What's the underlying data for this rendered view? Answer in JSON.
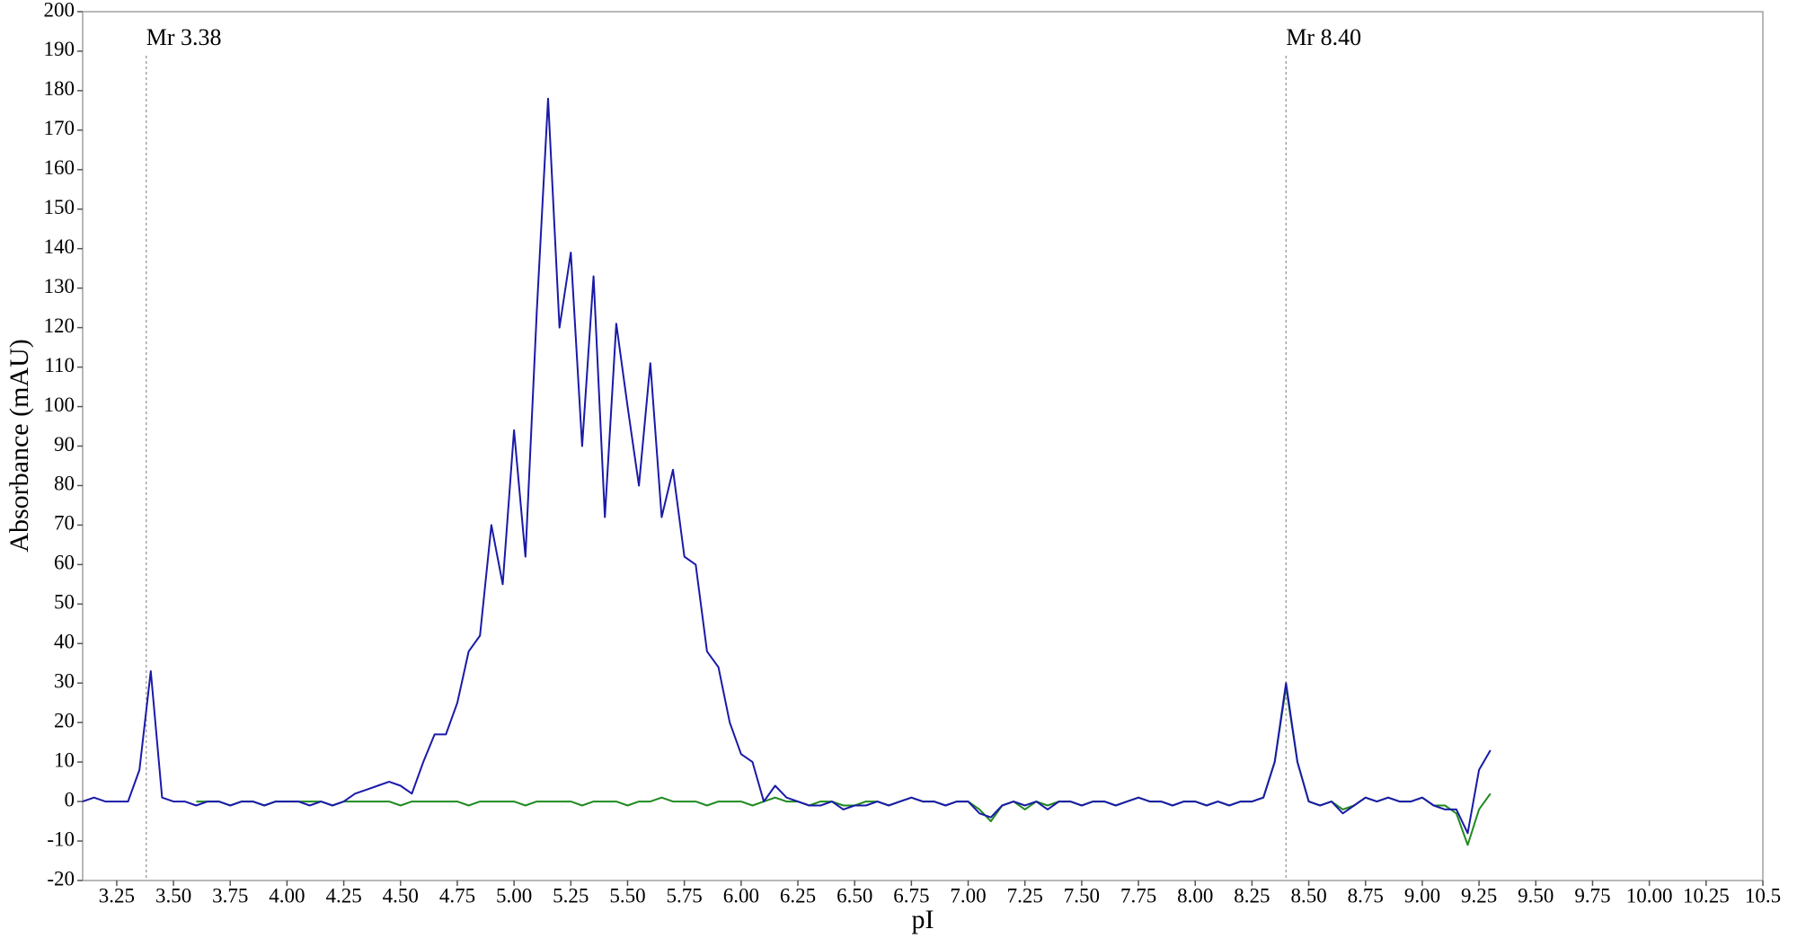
{
  "chart_data": {
    "type": "line",
    "x_label": "pI",
    "y_label": "Absorbance (mAU)",
    "x": [
      3.1,
      3.15,
      3.2,
      3.25,
      3.3,
      3.35,
      3.4,
      3.45,
      3.5,
      3.55,
      3.6,
      3.65,
      3.7,
      3.75,
      3.8,
      3.85,
      3.9,
      3.95,
      4.0,
      4.05,
      4.1,
      4.15,
      4.2,
      4.25,
      4.3,
      4.35,
      4.4,
      4.45,
      4.5,
      4.55,
      4.6,
      4.65,
      4.7,
      4.75,
      4.8,
      4.85,
      4.9,
      4.95,
      5.0,
      5.05,
      5.1,
      5.15,
      5.2,
      5.25,
      5.3,
      5.35,
      5.4,
      5.45,
      5.5,
      5.55,
      5.6,
      5.65,
      5.7,
      5.75,
      5.8,
      5.85,
      5.9,
      5.95,
      6.0,
      6.05,
      6.1,
      6.15,
      6.2,
      6.25,
      6.3,
      6.35,
      6.4,
      6.45,
      6.5,
      6.55,
      6.6,
      6.65,
      6.7,
      6.75,
      6.8,
      6.85,
      6.9,
      6.95,
      7.0,
      7.05,
      7.1,
      7.15,
      7.2,
      7.25,
      7.3,
      7.35,
      7.4,
      7.45,
      7.5,
      7.55,
      7.6,
      7.65,
      7.7,
      7.75,
      7.8,
      7.85,
      7.9,
      7.95,
      8.0,
      8.05,
      8.1,
      8.15,
      8.2,
      8.25,
      8.3,
      8.35,
      8.4,
      8.45,
      8.5,
      8.55,
      8.6,
      8.65,
      8.7,
      8.75,
      8.8,
      8.85,
      8.9,
      8.95,
      9.0,
      9.05,
      9.1,
      9.15,
      9.2,
      9.25,
      9.3
    ],
    "series": [
      {
        "color": "#1f8a1f",
        "values": [
          null,
          null,
          null,
          null,
          null,
          null,
          null,
          null,
          null,
          null,
          0,
          0,
          0,
          -1,
          0,
          0,
          -1,
          0,
          0,
          0,
          0,
          0,
          -1,
          0,
          0,
          0,
          0,
          0,
          -1,
          0,
          0,
          0,
          0,
          0,
          -1,
          0,
          0,
          0,
          0,
          -1,
          0,
          0,
          0,
          0,
          -1,
          0,
          0,
          0,
          -1,
          0,
          0,
          1,
          0,
          0,
          0,
          -1,
          0,
          0,
          0,
          -1,
          0,
          1,
          0,
          0,
          -1,
          0,
          0,
          -1,
          -1,
          0,
          0,
          -1,
          0,
          1,
          0,
          0,
          -1,
          0,
          0,
          -2,
          -5,
          -1,
          0,
          -2,
          0,
          -1,
          0,
          0,
          -1,
          0,
          0,
          -1,
          0,
          1,
          0,
          0,
          -1,
          0,
          0,
          -1,
          0,
          -1,
          0,
          0,
          1,
          10,
          29,
          10,
          0,
          -1,
          0,
          -2,
          -1,
          1,
          0,
          1,
          0,
          0,
          1,
          -1,
          -1,
          -3,
          -11,
          -2,
          2
        ]
      },
      {
        "color": "#1a1aa8",
        "values": [
          0,
          1,
          0,
          0,
          0,
          8,
          33,
          1,
          0,
          0,
          -1,
          0,
          0,
          -1,
          0,
          0,
          -1,
          0,
          0,
          0,
          -1,
          0,
          -1,
          0,
          2,
          3,
          4,
          5,
          4,
          2,
          10,
          17,
          17,
          25,
          38,
          42,
          70,
          55,
          94,
          62,
          124,
          178,
          120,
          139,
          90,
          133,
          72,
          121,
          100,
          80,
          111,
          72,
          84,
          62,
          60,
          38,
          34,
          20,
          12,
          10,
          0,
          4,
          1,
          0,
          -1,
          -1,
          0,
          -2,
          -1,
          -1,
          0,
          -1,
          0,
          1,
          0,
          0,
          -1,
          0,
          0,
          -3,
          -4,
          -1,
          0,
          -1,
          0,
          -2,
          0,
          0,
          -1,
          0,
          0,
          -1,
          0,
          1,
          0,
          0,
          -1,
          0,
          0,
          -1,
          0,
          -1,
          0,
          0,
          1,
          10,
          30,
          10,
          0,
          -1,
          0,
          -3,
          -1,
          1,
          0,
          1,
          0,
          0,
          1,
          -1,
          -2,
          -2,
          -8,
          8,
          13
        ]
      }
    ],
    "markers": [
      {
        "label": "Mr 3.38",
        "x": 3.38
      },
      {
        "label": "Mr 8.40",
        "x": 8.4
      }
    ],
    "xlim": [
      3.1,
      10.5
    ],
    "xticks": [
      3.25,
      {
        "value": 3.5,
        "label": "3.50"
      },
      3.75,
      {
        "value": 4,
        "label": "4.00"
      },
      4.25,
      {
        "value": 4.5,
        "label": "4.50"
      },
      4.75,
      {
        "value": 5,
        "label": "5.00"
      },
      5.25,
      {
        "value": 5.5,
        "label": "5.50"
      },
      5.75,
      {
        "value": 6,
        "label": "6.00"
      },
      6.25,
      {
        "value": 6.5,
        "label": "6.50"
      },
      6.75,
      {
        "value": 7,
        "label": "7.00"
      },
      7.25,
      {
        "value": 7.5,
        "label": "7.50"
      },
      7.75,
      {
        "value": 8,
        "label": "8.00"
      },
      8.25,
      {
        "value": 8.5,
        "label": "8.50"
      },
      8.75,
      {
        "value": 9,
        "label": "9.00"
      },
      9.25,
      {
        "value": 9.5,
        "label": "9.50"
      },
      9.75,
      {
        "value": 10,
        "label": "10.00"
      },
      10.25,
      10.5
    ],
    "ylim": [
      -20,
      200
    ],
    "yticks": [
      -20,
      -10,
      0,
      10,
      20,
      30,
      40,
      50,
      60,
      70,
      80,
      90,
      100,
      110,
      120,
      130,
      140,
      150,
      160,
      170,
      180,
      190,
      200
    ],
    "grid": false
  }
}
